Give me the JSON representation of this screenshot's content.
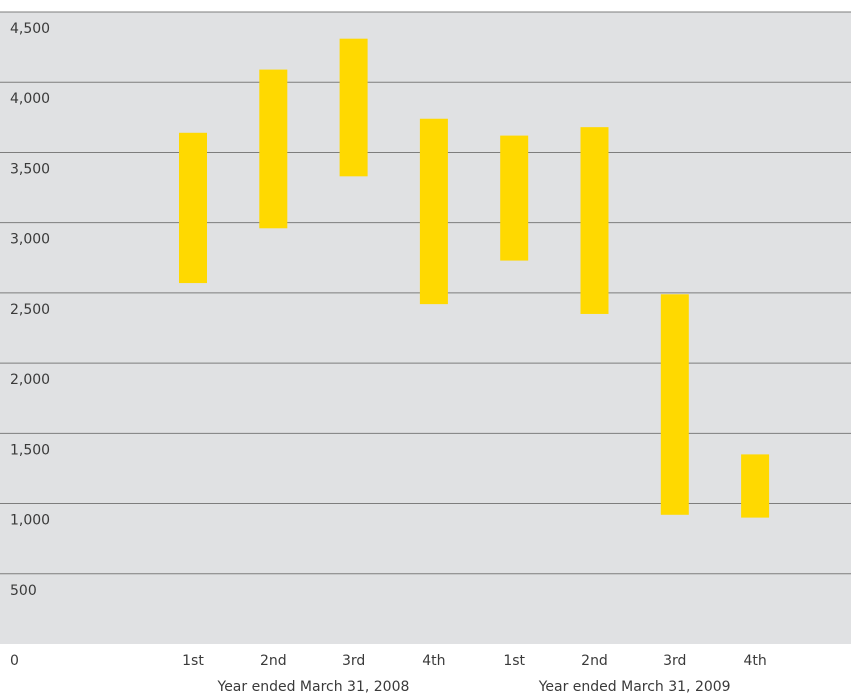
{
  "chart_data": {
    "type": "bar",
    "subtype": "floating-range",
    "title": "",
    "xlabel": "",
    "ylabel": "",
    "ylim": [
      0,
      4500
    ],
    "yticks": [
      0,
      500,
      1000,
      1500,
      2000,
      2500,
      3000,
      3500,
      4000,
      4500
    ],
    "ytick_labels": [
      "0",
      "500",
      "1,000",
      "1,500",
      "2,000",
      "2,500",
      "3,000",
      "3,500",
      "4,000",
      "4,500"
    ],
    "grid": true,
    "categories": [
      "1st",
      "2nd",
      "3rd",
      "4th",
      "1st",
      "2nd",
      "3rd",
      "4th"
    ],
    "groups": [
      {
        "label": "Year ended March 31, 2008",
        "indices": [
          0,
          1,
          2,
          3
        ]
      },
      {
        "label": "Year ended March 31, 2009",
        "indices": [
          4,
          5,
          6,
          7
        ]
      }
    ],
    "series": [
      {
        "low": [
          2570,
          2960,
          3330,
          2420,
          2730,
          2350,
          920,
          900
        ],
        "high": [
          3640,
          4090,
          4310,
          3740,
          3620,
          3680,
          2490,
          1350
        ]
      }
    ],
    "colors": {
      "bar": "#FFD900",
      "plot_background": "#E0E1E3",
      "gridline": "#7D7D7D",
      "text": "#3A3A3A"
    }
  }
}
